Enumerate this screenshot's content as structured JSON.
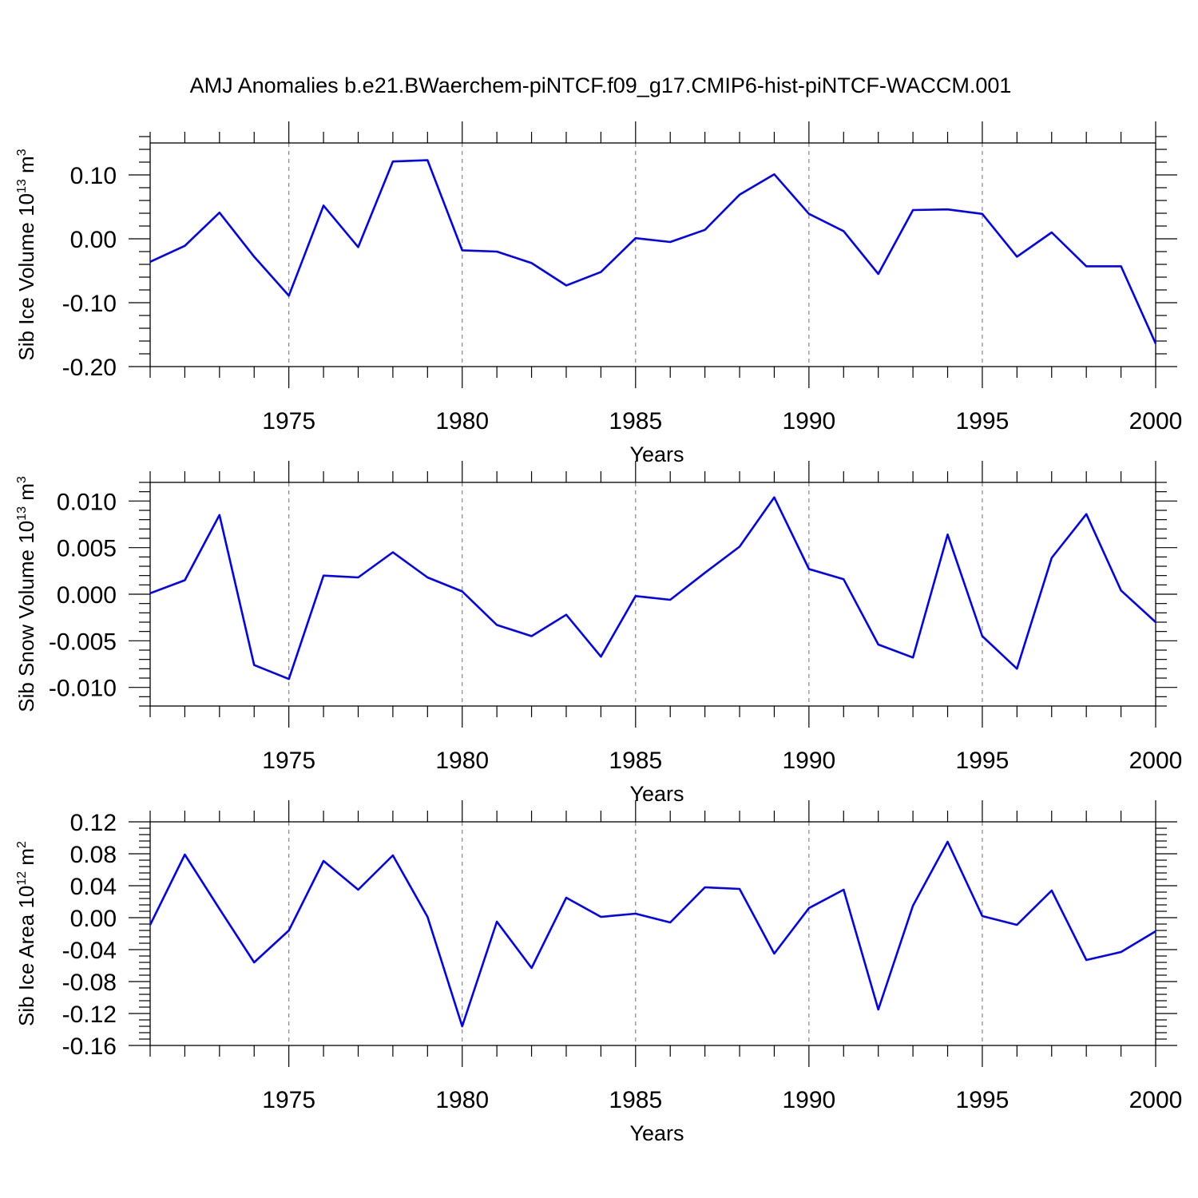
{
  "title": "AMJ Anomalies b.e21.BWaerchem-piNTCF.f09_g17.CMIP6-hist-piNTCF-WACCM.001",
  "colors": {
    "line": "#0000ff",
    "grid": "#888888",
    "axis": "#000000"
  },
  "chart_data": [
    {
      "type": "line",
      "ylabel_main": "Sib Ice Volume 10",
      "ylabel_exp": "13",
      "ylabel_unit": " m",
      "ylabel_unit_exp": "3",
      "xlabel": "Years",
      "xlim": [
        1971,
        2000
      ],
      "ylim": [
        -0.2,
        0.15
      ],
      "grid": "dashed vertical at major x ticks",
      "x_major_ticks": [
        1975,
        1980,
        1985,
        1990,
        1995,
        2000
      ],
      "x_tick_labels": [
        "1975",
        "1980",
        "1985",
        "1990",
        "1995",
        "2000"
      ],
      "y_major_ticks": [
        -0.2,
        -0.1,
        0.0,
        0.1
      ],
      "y_tick_labels": [
        "-0.20",
        "-0.10",
        "0.00",
        "0.10"
      ],
      "y_minor_step": 0.02,
      "series": [
        {
          "name": "Sib Ice Volume",
          "x": [
            1971,
            1972,
            1973,
            1974,
            1975,
            1976,
            1977,
            1978,
            1979,
            1980,
            1981,
            1982,
            1983,
            1984,
            1985,
            1986,
            1987,
            1988,
            1989,
            1990,
            1991,
            1992,
            1993,
            1994,
            1995,
            1996,
            1997,
            1998,
            1999,
            2000
          ],
          "values": [
            -0.036,
            -0.011,
            0.041,
            -0.028,
            -0.089,
            0.052,
            -0.013,
            0.121,
            0.123,
            -0.018,
            -0.02,
            -0.038,
            -0.073,
            -0.052,
            0.001,
            -0.005,
            0.014,
            0.069,
            0.101,
            0.039,
            0.012,
            -0.055,
            0.045,
            0.046,
            0.039,
            -0.028,
            0.01,
            -0.043,
            -0.043,
            -0.164
          ]
        }
      ]
    },
    {
      "type": "line",
      "ylabel_main": "Sib Snow Volume 10",
      "ylabel_exp": "13",
      "ylabel_unit": " m",
      "ylabel_unit_exp": "3",
      "xlabel": "Years",
      "xlim": [
        1971,
        2000
      ],
      "ylim": [
        -0.012,
        0.012
      ],
      "grid": "dashed vertical at major x ticks",
      "x_major_ticks": [
        1975,
        1980,
        1985,
        1990,
        1995,
        2000
      ],
      "x_tick_labels": [
        "1975",
        "1980",
        "1985",
        "1990",
        "1995",
        "2000"
      ],
      "y_major_ticks": [
        -0.01,
        -0.005,
        0.0,
        0.005,
        0.01
      ],
      "y_tick_labels": [
        "-0.010",
        "-0.005",
        "0.000",
        "0.005",
        "0.010"
      ],
      "y_minor_step": 0.001,
      "series": [
        {
          "name": "Sib Snow Volume",
          "x": [
            1971,
            1972,
            1973,
            1974,
            1975,
            1976,
            1977,
            1978,
            1979,
            1980,
            1981,
            1982,
            1983,
            1984,
            1985,
            1986,
            1987,
            1988,
            1989,
            1990,
            1991,
            1992,
            1993,
            1994,
            1995,
            1996,
            1997,
            1998,
            1999,
            2000
          ],
          "values": [
            0.0001,
            0.0015,
            0.0085,
            -0.0076,
            -0.0091,
            0.002,
            0.0018,
            0.0045,
            0.0018,
            0.0003,
            -0.0033,
            -0.0045,
            -0.0022,
            -0.0067,
            -0.0002,
            -0.0006,
            0.0023,
            0.0051,
            0.0104,
            0.0027,
            0.0016,
            -0.0054,
            -0.0068,
            0.0064,
            -0.0045,
            -0.008,
            0.0039,
            0.0086,
            0.0004,
            -0.003
          ]
        }
      ]
    },
    {
      "type": "line",
      "ylabel_main": "Sib Ice Area 10",
      "ylabel_exp": "12",
      "ylabel_unit": " m",
      "ylabel_unit_exp": "2",
      "xlabel": "Years",
      "xlim": [
        1971,
        2000
      ],
      "ylim": [
        -0.16,
        0.12
      ],
      "grid": "dashed vertical at major x ticks",
      "x_major_ticks": [
        1975,
        1980,
        1985,
        1990,
        1995,
        2000
      ],
      "x_tick_labels": [
        "1975",
        "1980",
        "1985",
        "1990",
        "1995",
        "2000"
      ],
      "y_major_ticks": [
        -0.16,
        -0.12,
        -0.08,
        -0.04,
        0.0,
        0.04,
        0.08,
        0.12
      ],
      "y_tick_labels": [
        "-0.16",
        "-0.12",
        "-0.08",
        "-0.04",
        "0.00",
        "0.04",
        "0.08",
        "0.12"
      ],
      "y_minor_step": 0.008,
      "series": [
        {
          "name": "Sib Ice Area",
          "x": [
            1971,
            1972,
            1973,
            1974,
            1975,
            1976,
            1977,
            1978,
            1979,
            1980,
            1981,
            1982,
            1983,
            1984,
            1985,
            1986,
            1987,
            1988,
            1989,
            1990,
            1991,
            1992,
            1993,
            1994,
            1995,
            1996,
            1997,
            1998,
            1999,
            2000
          ],
          "values": [
            -0.009,
            0.079,
            0.011,
            -0.056,
            -0.016,
            0.071,
            0.035,
            0.078,
            0.001,
            -0.136,
            -0.005,
            -0.063,
            0.025,
            0.001,
            0.005,
            -0.006,
            0.038,
            0.036,
            -0.045,
            0.012,
            0.035,
            -0.115,
            0.015,
            0.095,
            0.002,
            -0.009,
            0.034,
            -0.053,
            -0.043,
            -0.017
          ]
        }
      ]
    }
  ]
}
